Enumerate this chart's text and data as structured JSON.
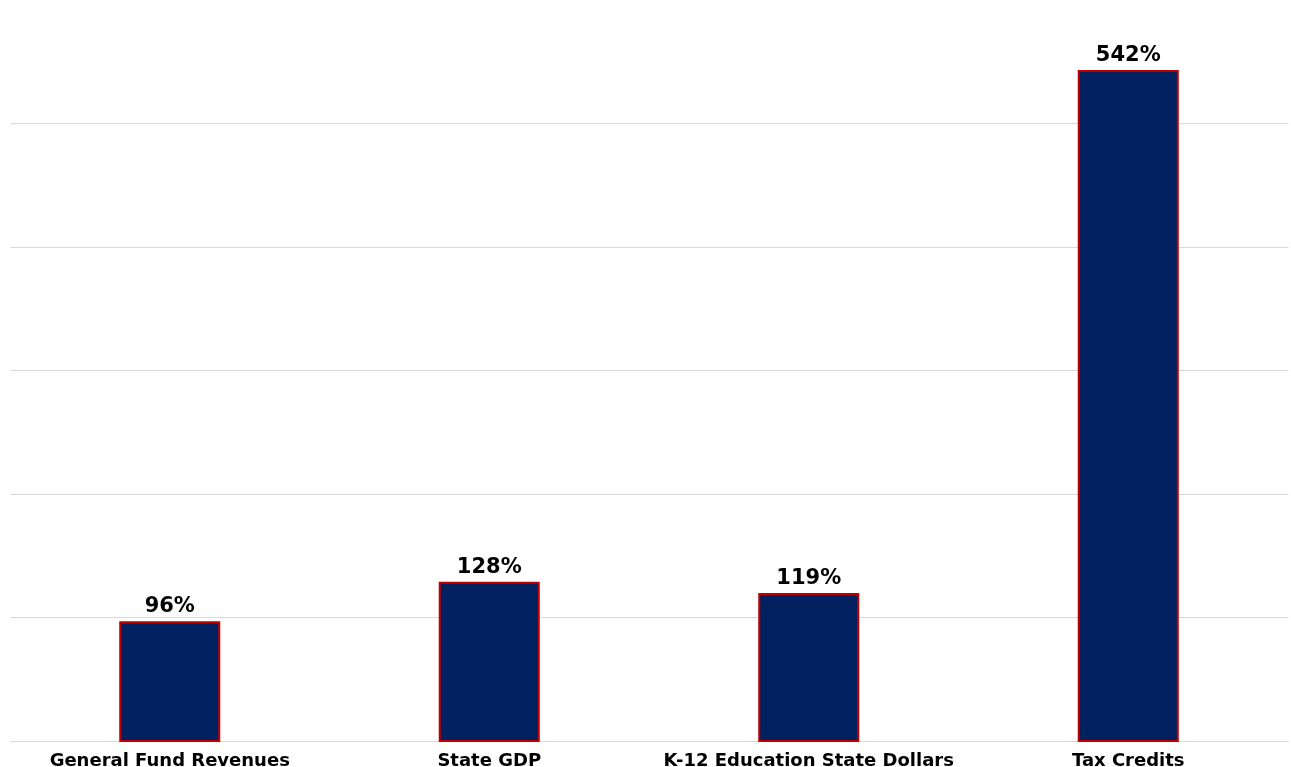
{
  "chart_data": {
    "type": "bar",
    "categories": [
      "General Fund Revenues",
      "State GDP",
      "K-12 Education State Dollars",
      "Tax Credits"
    ],
    "values": [
      96,
      128,
      119,
      542
    ],
    "color": "#002060",
    "value_labels": [
      "96%",
      "128%",
      "119%",
      "542%"
    ],
    "yticks": [
      {
        "value": 0,
        "label": null
      },
      {
        "value": 100,
        "label": null
      },
      {
        "value": 200,
        "label": null
      },
      {
        "value": 300,
        "label": null
      },
      {
        "value": 400,
        "label": null
      },
      {
        "value": 500,
        "label": null
      }
    ],
    "grid": "y",
    "tick_labels": "x"
  }
}
